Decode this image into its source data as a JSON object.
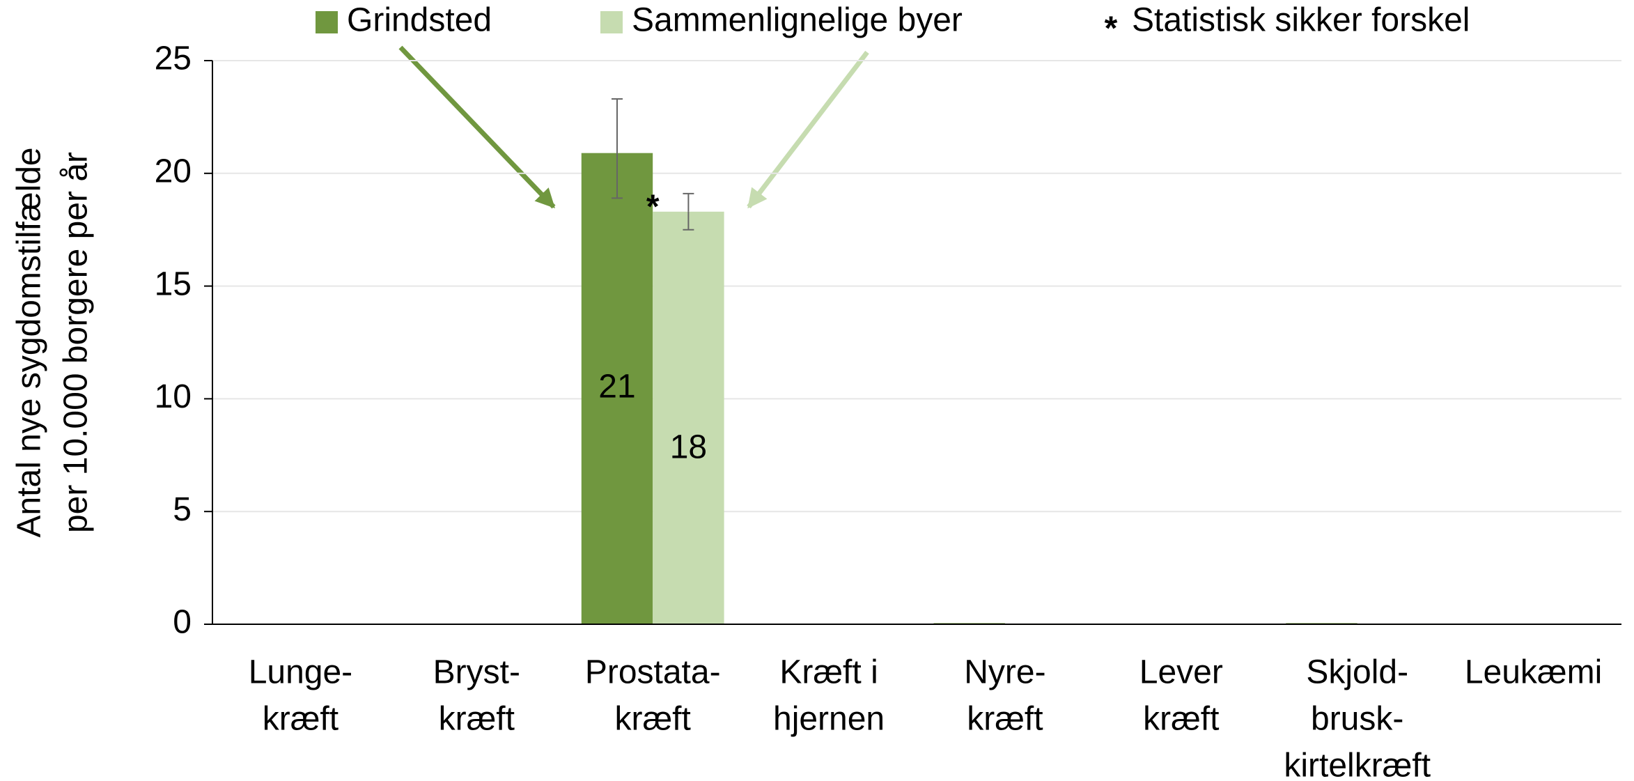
{
  "chart_data": {
    "type": "bar",
    "y_axis_label": [
      "Antal nye sygdomstilfælde",
      "per 10.000 borgere per år"
    ],
    "categories": [
      [
        "Lunge-",
        "kræft"
      ],
      [
        "Bryst-",
        "kræft"
      ],
      [
        "Prostata-",
        "kræft"
      ],
      [
        "Kræft i",
        "hjernen"
      ],
      [
        "Nyre-",
        "kræft"
      ],
      [
        "Lever",
        "kræft"
      ],
      [
        "Skjold-",
        "brusk-",
        "kirtelkræft"
      ],
      [
        "Leukæmi"
      ]
    ],
    "series": [
      {
        "name": "Grindsted",
        "color": "#70973f",
        "values": [
          null,
          null,
          20.9,
          null,
          0.05,
          null,
          0.05,
          null
        ],
        "value_labels": [
          null,
          null,
          "21",
          null,
          null,
          null,
          null,
          null
        ],
        "error_minus": [
          null,
          null,
          2.0,
          null,
          null,
          null,
          null,
          null
        ],
        "error_plus": [
          null,
          null,
          2.4,
          null,
          null,
          null,
          null,
          null
        ]
      },
      {
        "name": "Sammenlignelige byer",
        "color": "#c6dcb0",
        "values": [
          null,
          null,
          18.3,
          null,
          0.03,
          null,
          0.03,
          null
        ],
        "value_labels": [
          null,
          null,
          "18",
          null,
          null,
          null,
          null,
          null
        ],
        "error_minus": [
          null,
          null,
          0.8,
          null,
          null,
          null,
          null,
          null
        ],
        "error_plus": [
          null,
          null,
          0.8,
          null,
          null,
          null,
          null,
          null
        ]
      }
    ],
    "significance": {
      "name": "Statistisk sikker forskel",
      "color": "#ff0000",
      "symbol": "*",
      "categories": [
        2
      ]
    },
    "ylim": [
      0,
      25
    ],
    "yticks": [
      0,
      5,
      10,
      15,
      20,
      25
    ],
    "grid": true
  }
}
